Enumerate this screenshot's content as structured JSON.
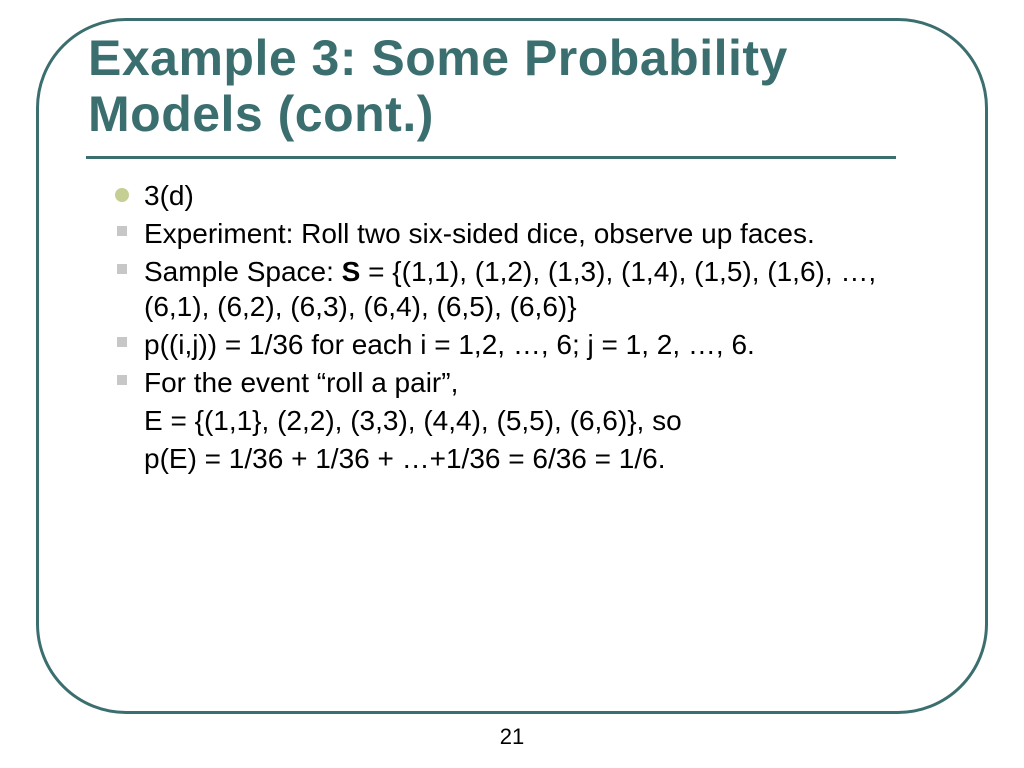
{
  "colors": {
    "border": "#3b6e6e",
    "title": "#3b6e6e",
    "rule": "#3b6e6e",
    "bullet_primary": "#c6cf93",
    "bullet_secondary": "#c7c7c7",
    "text": "#000000",
    "background": "#ffffff"
  },
  "layout": {
    "slide_width": 1024,
    "slide_height": 768,
    "frame_border_radius": 90,
    "frame_border_width": 3
  },
  "typography": {
    "title_font": "Arial",
    "title_weight": 900,
    "title_size_pt": 38,
    "body_font": "Arial",
    "body_size_pt": 21
  },
  "title": "Example 3:  Some Probability Models (cont.)",
  "bullets": {
    "b0": "3(d)",
    "b1": "Experiment:  Roll two six-sided dice, observe up faces.",
    "b2_prefix": "Sample Space:  ",
    "b2_bold": "S",
    "b2_rest": " = {(1,1), (1,2), (1,3), (1,4), (1,5), (1,6), …, (6,1), (6,2), (6,3), (6,4), (6,5), (6,6)}",
    "b3": "p((i,j)) = 1/36 for each i = 1,2, …, 6; j = 1, 2, …, 6.",
    "b4": "For the event “roll a pair”,",
    "b4_cont1": "E = {(1,1}, (2,2), (3,3), (4,4), (5,5), (6,6)}, so",
    "b4_cont2": "p(E) = 1/36 + 1/36 + …+1/36 = 6/36 = 1/6."
  },
  "page_number": "21"
}
